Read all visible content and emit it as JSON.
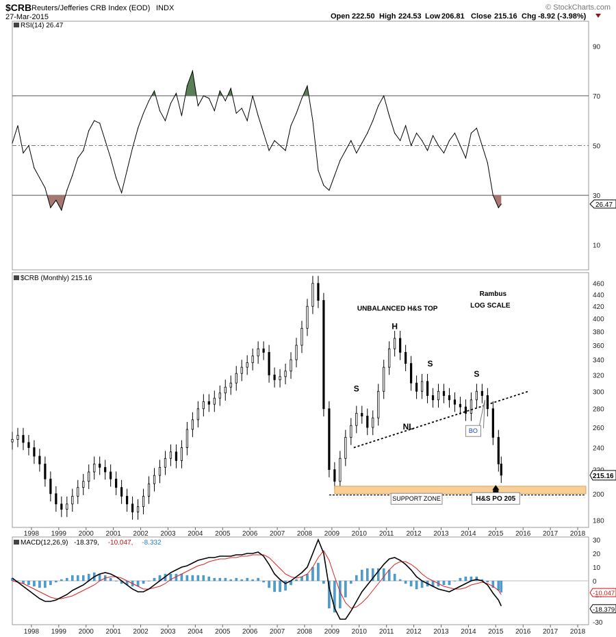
{
  "header": {
    "symbol": "$CRB",
    "name": "Reuters/Jefferies CRB Index (EOD)",
    "exchange": "INDX",
    "date": "27-Mar-2015",
    "brand": "© StockCharts.com",
    "open_label": "Open",
    "open": "222.50",
    "high_label": "High",
    "high": "224.53",
    "low_label": "Low",
    "low": "206.81",
    "close_label": "Close",
    "close": "215.16",
    "chg_label": "Chg",
    "chg": "-8.92 (-3.98%)"
  },
  "colors": {
    "price": "#000000",
    "rsi": "#000000",
    "overbought_fill": "#5c7f59",
    "oversold_fill": "#a77772",
    "macd": "#000000",
    "signal": "#e02020",
    "histogram": "#4a9fd0",
    "support_zone": "#f9cf98",
    "support_border": "#e3a055"
  },
  "chart_data": [
    {
      "type": "line",
      "title": "RSI(14) 26.47",
      "ylim": [
        0,
        100
      ],
      "yticks": [
        10,
        30,
        50,
        70,
        90
      ],
      "levels": [
        30,
        50,
        70
      ],
      "last_value_label": "26.47",
      "x": [
        1997.3,
        1997.5,
        1997.7,
        1997.9,
        1998.1,
        1998.3,
        1998.5,
        1998.7,
        1998.9,
        1999.1,
        1999.3,
        1999.5,
        1999.7,
        1999.9,
        2000.1,
        2000.3,
        2000.5,
        2000.7,
        2000.9,
        2001.1,
        2001.3,
        2001.5,
        2001.7,
        2001.9,
        2002.1,
        2002.3,
        2002.5,
        2002.7,
        2002.9,
        2003.1,
        2003.3,
        2003.5,
        2003.7,
        2003.9,
        2004.1,
        2004.3,
        2004.5,
        2004.7,
        2004.9,
        2005.1,
        2005.3,
        2005.5,
        2005.7,
        2005.9,
        2006.1,
        2006.3,
        2006.5,
        2006.7,
        2006.9,
        2007.1,
        2007.3,
        2007.5,
        2007.7,
        2007.9,
        2008.1,
        2008.3,
        2008.5,
        2008.7,
        2008.9,
        2009.1,
        2009.3,
        2009.5,
        2009.7,
        2009.9,
        2010.1,
        2010.3,
        2010.5,
        2010.7,
        2010.9,
        2011.1,
        2011.3,
        2011.5,
        2011.7,
        2011.9,
        2012.1,
        2012.3,
        2012.5,
        2012.7,
        2012.9,
        2013.1,
        2013.3,
        2013.5,
        2013.7,
        2013.9,
        2014.1,
        2014.3,
        2014.5,
        2014.7,
        2014.9,
        2015.1,
        2015.2
      ],
      "values": [
        51,
        58,
        47,
        50,
        41,
        37,
        33,
        25,
        28,
        24,
        32,
        38,
        45,
        48,
        56,
        60,
        59,
        52,
        45,
        37,
        31,
        40,
        49,
        57,
        63,
        68,
        72,
        64,
        60,
        67,
        71,
        62,
        74,
        80,
        66,
        70,
        69,
        64,
        72,
        68,
        73,
        63,
        65,
        60,
        70,
        62,
        55,
        48,
        52,
        50,
        48,
        58,
        63,
        69,
        74,
        60,
        40,
        34,
        32,
        38,
        44,
        48,
        52,
        47,
        51,
        55,
        60,
        66,
        70,
        62,
        55,
        52,
        58,
        50,
        55,
        52,
        48,
        54,
        50,
        47,
        52,
        55,
        50,
        45,
        55,
        57,
        50,
        43,
        30,
        25,
        26.47
      ]
    },
    {
      "type": "candlestick",
      "title": "$CRB (Monthly) 215.16",
      "scale": "log",
      "ylim": [
        175,
        480
      ],
      "yticks": [
        180,
        200,
        220,
        240,
        260,
        280,
        300,
        320,
        340,
        360,
        380,
        400,
        420,
        440,
        460
      ],
      "last_value_label": "215.16",
      "xticks": [
        "1998",
        "1999",
        "2000",
        "2001",
        "2002",
        "2003",
        "2004",
        "2005",
        "2006",
        "2007",
        "2008",
        "2009",
        "2010",
        "2011",
        "2012",
        "2013",
        "2014",
        "2015",
        "2016",
        "2017",
        "2018"
      ],
      "x": [
        1997.3,
        1997.5,
        1997.7,
        1997.9,
        1998.1,
        1998.3,
        1998.5,
        1998.7,
        1998.9,
        1999.1,
        1999.3,
        1999.5,
        1999.7,
        1999.9,
        2000.1,
        2000.3,
        2000.5,
        2000.7,
        2000.9,
        2001.1,
        2001.3,
        2001.5,
        2001.7,
        2001.9,
        2002.1,
        2002.3,
        2002.5,
        2002.7,
        2002.9,
        2003.1,
        2003.3,
        2003.5,
        2003.7,
        2003.9,
        2004.1,
        2004.3,
        2004.5,
        2004.7,
        2004.9,
        2005.1,
        2005.3,
        2005.5,
        2005.7,
        2005.9,
        2006.1,
        2006.3,
        2006.5,
        2006.7,
        2006.9,
        2007.1,
        2007.3,
        2007.5,
        2007.7,
        2007.9,
        2008.1,
        2008.3,
        2008.5,
        2008.7,
        2008.9,
        2009.1,
        2009.3,
        2009.5,
        2009.7,
        2009.9,
        2010.1,
        2010.3,
        2010.5,
        2010.7,
        2010.9,
        2011.1,
        2011.3,
        2011.5,
        2011.7,
        2011.9,
        2012.1,
        2012.3,
        2012.5,
        2012.7,
        2012.9,
        2013.1,
        2013.3,
        2013.5,
        2013.7,
        2013.9,
        2014.1,
        2014.3,
        2014.5,
        2014.7,
        2014.9,
        2015.1,
        2015.2
      ],
      "values": [
        248,
        252,
        245,
        240,
        232,
        225,
        212,
        200,
        192,
        188,
        192,
        198,
        205,
        210,
        218,
        225,
        222,
        218,
        212,
        205,
        198,
        192,
        186,
        190,
        198,
        208,
        215,
        222,
        230,
        236,
        228,
        240,
        258,
        268,
        280,
        288,
        285,
        292,
        298,
        305,
        310,
        322,
        330,
        336,
        345,
        355,
        350,
        320,
        314,
        318,
        325,
        340,
        360,
        385,
        420,
        460,
        430,
        280,
        220,
        210,
        230,
        250,
        262,
        275,
        272,
        260,
        270,
        300,
        330,
        355,
        370,
        350,
        335,
        310,
        300,
        312,
        295,
        290,
        300,
        295,
        290,
        285,
        282,
        275,
        290,
        300,
        295,
        280,
        250,
        225,
        215.16
      ],
      "annotations": [
        {
          "text": "UNBALANCED H&S TOP"
        },
        {
          "text": "Rambus"
        },
        {
          "text": "LOG SCALE"
        },
        {
          "text": "H"
        },
        {
          "text": "S"
        },
        {
          "text": "S"
        },
        {
          "text": "S"
        },
        {
          "text": "NL"
        },
        {
          "text": "BO"
        },
        {
          "text": "SUPPORT ZONE"
        },
        {
          "text": "H&S PO 205"
        }
      ]
    },
    {
      "type": "line",
      "title": "MACD(12,26,9) -18.379, -10.047, -8.332",
      "title_parts": [
        "MACD(12,26,9)",
        "-18.379,",
        "-10.047,",
        "-8.332"
      ],
      "ylim": [
        -32,
        32
      ],
      "yticks": [
        -30,
        -20,
        -10,
        0,
        10,
        20,
        30
      ],
      "labels": [
        "-10.047",
        "-18.379"
      ],
      "x": [
        1997.3,
        1997.5,
        1997.7,
        1997.9,
        1998.1,
        1998.3,
        1998.5,
        1998.7,
        1998.9,
        1999.1,
        1999.3,
        1999.5,
        1999.7,
        1999.9,
        2000.1,
        2000.3,
        2000.5,
        2000.7,
        2000.9,
        2001.1,
        2001.3,
        2001.5,
        2001.7,
        2001.9,
        2002.1,
        2002.3,
        2002.5,
        2002.7,
        2002.9,
        2003.1,
        2003.3,
        2003.5,
        2003.7,
        2003.9,
        2004.1,
        2004.3,
        2004.5,
        2004.7,
        2004.9,
        2005.1,
        2005.3,
        2005.5,
        2005.7,
        2005.9,
        2006.1,
        2006.3,
        2006.5,
        2006.7,
        2006.9,
        2007.1,
        2007.3,
        2007.5,
        2007.7,
        2007.9,
        2008.1,
        2008.3,
        2008.5,
        2008.7,
        2008.9,
        2009.1,
        2009.3,
        2009.5,
        2009.7,
        2009.9,
        2010.1,
        2010.3,
        2010.5,
        2010.7,
        2010.9,
        2011.1,
        2011.3,
        2011.5,
        2011.7,
        2011.9,
        2012.1,
        2012.3,
        2012.5,
        2012.7,
        2012.9,
        2013.1,
        2013.3,
        2013.5,
        2013.7,
        2013.9,
        2014.1,
        2014.3,
        2014.5,
        2014.7,
        2014.9,
        2015.1,
        2015.2
      ],
      "series": [
        {
          "name": "MACD(12,26,9)",
          "values": [
            2,
            -1,
            -4,
            -7,
            -10,
            -13,
            -15,
            -15,
            -14,
            -12,
            -10,
            -7,
            -5,
            -3,
            0,
            3,
            5,
            6,
            5,
            3,
            0,
            -3,
            -6,
            -8,
            -8,
            -6,
            -3,
            0,
            3,
            6,
            8,
            10,
            11,
            13,
            15,
            16,
            17,
            17,
            18,
            18,
            18,
            19,
            19,
            20,
            20,
            21,
            18,
            12,
            5,
            1,
            -2,
            0,
            3,
            6,
            10,
            20,
            30,
            20,
            -5,
            -20,
            -28,
            -28,
            -22,
            -15,
            -8,
            -3,
            2,
            7,
            12,
            16,
            17,
            15,
            12,
            8,
            3,
            0,
            -2,
            -4,
            -6,
            -7,
            -8,
            -6,
            -4,
            -2,
            0,
            1,
            0,
            -3,
            -9,
            -14,
            -18.379
          ]
        },
        {
          "name": "signal",
          "values": [
            0,
            -1,
            -2,
            -4,
            -6,
            -8,
            -10,
            -12,
            -13,
            -13,
            -12,
            -11,
            -9,
            -7,
            -5,
            -3,
            0,
            2,
            3,
            3,
            2,
            0,
            -2,
            -4,
            -6,
            -6,
            -5,
            -4,
            -2,
            1,
            3,
            5,
            7,
            9,
            11,
            12,
            14,
            15,
            16,
            16,
            17,
            17,
            18,
            18,
            19,
            19,
            19,
            17,
            13,
            9,
            5,
            3,
            2,
            3,
            5,
            10,
            17,
            22,
            15,
            3,
            -8,
            -16,
            -20,
            -19,
            -16,
            -12,
            -7,
            -2,
            3,
            8,
            12,
            14,
            14,
            12,
            9,
            5,
            2,
            0,
            -2,
            -4,
            -5,
            -6,
            -6,
            -5,
            -3,
            -2,
            -1,
            -2,
            -4,
            -7,
            -10.047
          ]
        },
        {
          "name": "histogram",
          "values": [
            2,
            0,
            -2,
            -3,
            -4,
            -5,
            -5,
            -3,
            -1,
            1,
            2,
            4,
            4,
            4,
            5,
            6,
            5,
            4,
            2,
            0,
            -2,
            -3,
            -4,
            -4,
            -2,
            0,
            2,
            4,
            5,
            5,
            5,
            5,
            4,
            4,
            4,
            4,
            3,
            2,
            2,
            2,
            1,
            2,
            1,
            2,
            1,
            2,
            -1,
            -5,
            -8,
            -8,
            -7,
            -3,
            1,
            3,
            5,
            10,
            13,
            -2,
            -20,
            -23,
            -20,
            -12,
            -2,
            4,
            8,
            9,
            9,
            9,
            9,
            8,
            5,
            1,
            -2,
            -4,
            -6,
            -5,
            -4,
            -4,
            -4,
            -3,
            -3,
            0,
            2,
            3,
            3,
            3,
            1,
            -1,
            -5,
            -7,
            -8.332
          ]
        }
      ]
    }
  ]
}
